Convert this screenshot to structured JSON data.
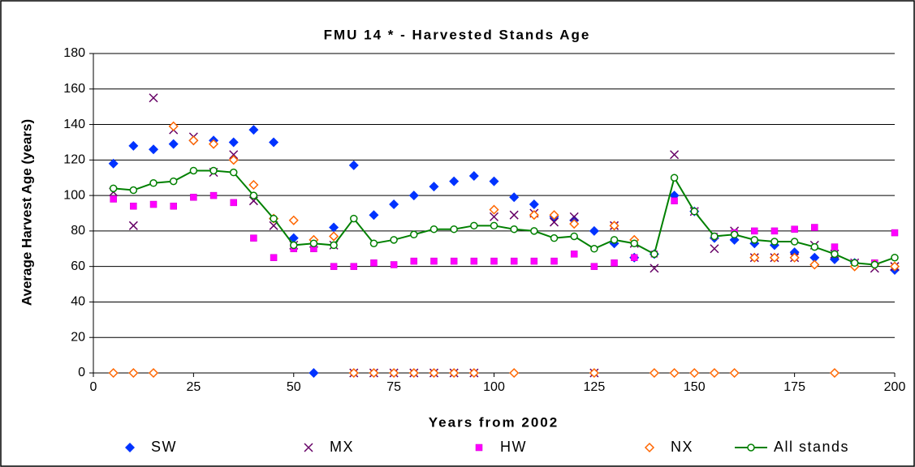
{
  "chart_data": {
    "type": "scatter",
    "title": "FMU 14 * - Harvested Stands Age",
    "xlabel": "Years from 2002",
    "ylabel": "Average Harvest Age (years)",
    "x": [
      5,
      10,
      15,
      20,
      25,
      30,
      35,
      40,
      45,
      50,
      55,
      60,
      65,
      70,
      75,
      80,
      85,
      90,
      95,
      100,
      105,
      110,
      115,
      120,
      125,
      130,
      135,
      140,
      145,
      150,
      155,
      160,
      165,
      170,
      175,
      180,
      185,
      190,
      195,
      200
    ],
    "series": [
      {
        "name": "SW",
        "color": "#0033ff",
        "marker": "diamond",
        "values": [
          118,
          128,
          126,
          129,
          131,
          131,
          130,
          137,
          130,
          76,
          0,
          82,
          117,
          89,
          95,
          100,
          105,
          108,
          111,
          108,
          99,
          95,
          88,
          86,
          80,
          73,
          65,
          67,
          100,
          91,
          76,
          75,
          73,
          72,
          68,
          65,
          64,
          62,
          61,
          58
        ]
      },
      {
        "name": "MX",
        "color": "#660066",
        "marker": "x",
        "values": [
          102,
          83,
          155,
          137,
          133,
          113,
          123,
          97,
          83,
          72,
          73,
          72,
          0,
          0,
          0,
          0,
          0,
          0,
          0,
          88,
          89,
          90,
          85,
          88,
          0,
          83,
          73,
          59,
          123,
          91,
          70,
          80,
          65,
          65,
          65,
          72,
          67,
          62,
          59,
          60
        ]
      },
      {
        "name": "HW",
        "color": "#ff00ff",
        "marker": "square",
        "values": [
          98,
          94,
          95,
          94,
          99,
          100,
          96,
          76,
          65,
          70,
          70,
          60,
          60,
          62,
          61,
          63,
          63,
          63,
          63,
          63,
          63,
          63,
          63,
          67,
          60,
          62,
          65,
          67,
          97,
          91,
          77,
          79,
          80,
          80,
          81,
          82,
          71,
          62,
          62,
          79
        ]
      },
      {
        "name": "NX",
        "color": "#ff6600",
        "marker": "open-diamond",
        "values": [
          0,
          0,
          0,
          139,
          131,
          129,
          120,
          106,
          87,
          86,
          75,
          77,
          0,
          0,
          0,
          0,
          0,
          0,
          0,
          92,
          0,
          89,
          89,
          84,
          0,
          83,
          75,
          0,
          0,
          0,
          0,
          0,
          65,
          65,
          65,
          61,
          0,
          60,
          61,
          60
        ]
      },
      {
        "name": "All stands",
        "color": "#008000",
        "marker": "line-circle",
        "values": [
          104,
          103,
          107,
          108,
          114,
          114,
          113,
          100,
          87,
          72,
          73,
          72,
          87,
          73,
          75,
          78,
          81,
          81,
          83,
          83,
          81,
          80,
          76,
          77,
          70,
          75,
          73,
          67,
          110,
          91,
          77,
          78,
          75,
          74,
          74,
          71,
          67,
          62,
          61,
          65
        ]
      }
    ],
    "xlim": [
      0,
      200
    ],
    "xticks": [
      0,
      25,
      50,
      75,
      100,
      125,
      150,
      175,
      200
    ],
    "ylim": [
      0,
      180
    ],
    "yticks": [
      0,
      20,
      40,
      60,
      80,
      100,
      120,
      140,
      160,
      180
    ],
    "grid": true,
    "legend": "bottom"
  }
}
